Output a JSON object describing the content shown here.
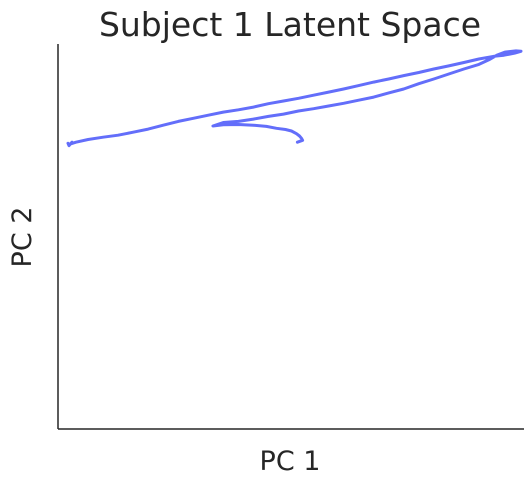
{
  "chart_data": {
    "type": "line",
    "title": "Subject 1 Latent Space",
    "xlabel": "PC 1",
    "ylabel": "PC 2",
    "xlim": [
      0,
      1
    ],
    "ylim": [
      0,
      1
    ],
    "xticks_visible": false,
    "yticks_visible": false,
    "grid": false,
    "spines": [
      "left",
      "bottom"
    ],
    "line_color": "#636EFA",
    "series": [
      {
        "x": [
          0.5137,
          0.5248,
          0.5226,
          0.5183,
          0.5118,
          0.5011,
          0.4882,
          0.4688,
          0.4473,
          0.4194,
          0.3871,
          0.3548,
          0.3323,
          0.3548,
          0.3871,
          0.4194,
          0.4516,
          0.4839,
          0.5161,
          0.5484,
          0.5806,
          0.6129,
          0.6452,
          0.6774,
          0.7097,
          0.7419,
          0.7742,
          0.8065,
          0.8387,
          0.871,
          0.9032,
          0.9247,
          0.9419,
          0.9591,
          0.9828,
          0.9935,
          0.9796,
          0.957,
          0.9355,
          0.9032,
          0.871,
          0.8387,
          0.8065,
          0.7742,
          0.7419,
          0.7097,
          0.6774,
          0.6452,
          0.6129,
          0.5806,
          0.5484,
          0.5161,
          0.4839,
          0.4516,
          0.4194,
          0.3871,
          0.3548,
          0.3226,
          0.2903,
          0.2581,
          0.2258,
          0.1935,
          0.1613,
          0.129,
          0.0968,
          0.0645,
          0.0387,
          0.0258,
          0.0301,
          0.0237,
          0.0215
        ],
        "y": [
          0.745,
          0.75,
          0.755,
          0.761,
          0.767,
          0.774,
          0.778,
          0.781,
          0.786,
          0.789,
          0.791,
          0.79,
          0.787,
          0.796,
          0.799,
          0.805,
          0.812,
          0.818,
          0.826,
          0.832,
          0.839,
          0.846,
          0.854,
          0.862,
          0.873,
          0.883,
          0.897,
          0.909,
          0.922,
          0.935,
          0.947,
          0.959,
          0.971,
          0.979,
          0.982,
          0.981,
          0.976,
          0.971,
          0.968,
          0.961,
          0.952,
          0.943,
          0.935,
          0.926,
          0.918,
          0.909,
          0.901,
          0.892,
          0.883,
          0.875,
          0.867,
          0.859,
          0.852,
          0.845,
          0.836,
          0.829,
          0.823,
          0.815,
          0.807,
          0.799,
          0.789,
          0.779,
          0.771,
          0.763,
          0.758,
          0.752,
          0.745,
          0.74,
          0.745,
          0.736,
          0.742
        ]
      }
    ]
  }
}
